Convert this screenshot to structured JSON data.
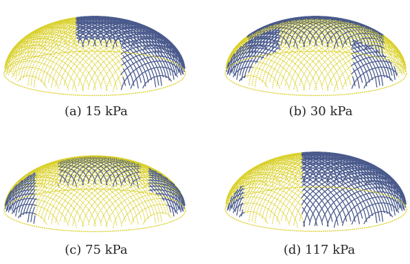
{
  "colors": {
    "yellow_wire": "#d9d02a",
    "blue_wire": "#4a5a8c"
  },
  "subfigures": [
    {
      "id": "a",
      "caption": "(a) 15 kPa",
      "wrinkled_share": 0.6
    },
    {
      "id": "b",
      "caption": "(b) 30 kPa",
      "wrinkled_share": 0.55
    },
    {
      "id": "c",
      "caption": "(c) 75 kPa",
      "wrinkled_share": 0.3
    },
    {
      "id": "d",
      "caption": "(d) 117 kPa",
      "wrinkled_share": 0.65
    }
  ]
}
